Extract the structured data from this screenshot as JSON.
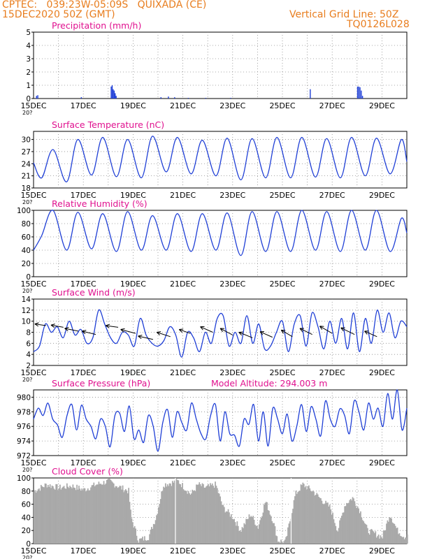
{
  "header": {
    "line1": "CPTEC:   039:23W-05:09S   QUIXADA (CE)",
    "line2": "15DEC2020 50Z (GMT)",
    "grid_note": "Vertical Grid Line: 50Z",
    "code": "TQ0126L028"
  },
  "colors": {
    "header": "#e87d1e",
    "title": "#e0118f",
    "line": "#1f3fd6",
    "cloud": "#a9a9a9",
    "arrow": "#000000"
  },
  "x_axis": {
    "labels": [
      "15DEC",
      "17DEC",
      "19DEC",
      "21DEC",
      "23DEC",
      "25DEC",
      "27DEC",
      "29DEC"
    ],
    "label_days": [
      0,
      2,
      4,
      6,
      8,
      10,
      12,
      14
    ],
    "day_range": [
      0,
      15
    ],
    "stub": "20?"
  },
  "chart_data": [
    {
      "id": "precip",
      "type": "bar",
      "title": "Precipitation (mm/h)",
      "ylim": [
        0,
        5
      ],
      "yticks": [
        0,
        1,
        2,
        3,
        4,
        5
      ],
      "grid": true,
      "points": [
        [
          0.1,
          0.2
        ],
        [
          0.15,
          0.25
        ],
        [
          1.9,
          0.1
        ],
        [
          3.1,
          0.9
        ],
        [
          3.14,
          1.0
        ],
        [
          3.18,
          0.7
        ],
        [
          3.22,
          0.6
        ],
        [
          3.26,
          0.4
        ],
        [
          3.3,
          0.2
        ],
        [
          5.1,
          0.1
        ],
        [
          5.4,
          0.15
        ],
        [
          5.65,
          0.1
        ],
        [
          6.2,
          0.05
        ],
        [
          6.9,
          0.05
        ],
        [
          7.9,
          0.05
        ],
        [
          11.1,
          0.7
        ],
        [
          13.0,
          0.9
        ],
        [
          13.05,
          0.9
        ],
        [
          13.1,
          0.85
        ],
        [
          13.15,
          0.6
        ],
        [
          13.2,
          0.2
        ]
      ]
    },
    {
      "id": "temp",
      "type": "line",
      "title": "Surface Temperature (nC)",
      "ylim": [
        18,
        32
      ],
      "yticks": [
        18,
        21,
        24,
        27,
        30
      ],
      "grid": true,
      "cycle": {
        "min": [
          20.5,
          19.5,
          21.2,
          20.8,
          20.5,
          22,
          21.5,
          21,
          20,
          20.5,
          20.5,
          20.7,
          20.5,
          21,
          21.5,
          21.5
        ],
        "max": [
          27.5,
          30,
          30.5,
          30,
          30.8,
          30.5,
          29.8,
          30.3,
          30.2,
          30.5,
          30.5,
          30.2,
          30.5,
          30.3,
          30,
          29.5
        ]
      }
    },
    {
      "id": "rh",
      "type": "line",
      "title": "Relative Humidity (%)",
      "ylim": [
        0,
        100
      ],
      "yticks": [
        0,
        20,
        40,
        60,
        80,
        100
      ],
      "grid": true,
      "cycle": {
        "min": [
          62,
          40,
          42,
          38,
          40,
          40,
          38,
          40,
          32,
          38,
          38,
          40,
          38,
          40,
          38,
          42
        ],
        "max": [
          100,
          97,
          95,
          98,
          92,
          95,
          95,
          96,
          98,
          98,
          100,
          98,
          100,
          100,
          88,
          90
        ]
      }
    },
    {
      "id": "wind",
      "type": "line",
      "title": "Surface Wind (m/s)",
      "ylim": [
        2,
        14
      ],
      "yticks": [
        2,
        4,
        6,
        8,
        10,
        12,
        14
      ],
      "grid": true,
      "values": [
        4.5,
        5.5,
        9.5,
        8,
        9,
        7,
        10,
        7.5,
        8.5,
        6,
        7,
        12,
        9.5,
        7,
        6,
        8,
        7.5,
        5.5,
        10.5,
        7.5,
        6,
        5.5,
        6.5,
        9,
        7.5,
        3.5,
        8,
        7,
        4.5,
        8,
        6,
        10.5,
        11,
        5.5,
        8,
        6,
        11,
        6,
        9.5,
        5,
        5.5,
        8,
        10,
        4.5,
        9.5,
        11,
        5.5,
        11.5,
        9,
        5,
        10,
        6,
        10.5,
        5,
        11.5,
        4.5,
        10.5,
        6,
        12,
        8,
        11.5,
        7,
        10,
        9
      ],
      "arrows": [
        [
          0.5,
          9.2,
          -0.45,
          0.3
        ],
        [
          1.2,
          8.9,
          -0.5,
          0.4
        ],
        [
          1.8,
          8.2,
          -0.55,
          0.5
        ],
        [
          2.5,
          7.6,
          -0.55,
          0.6
        ],
        [
          3.4,
          8.9,
          -0.5,
          0.3
        ],
        [
          4.1,
          7.8,
          -0.6,
          0.7
        ],
        [
          4.8,
          6.7,
          -0.6,
          0.6
        ],
        [
          5.5,
          7.2,
          -0.55,
          0.8
        ],
        [
          6.3,
          7.8,
          -0.45,
          0.7
        ],
        [
          7.2,
          8.0,
          -0.5,
          1.0
        ],
        [
          8.0,
          7.5,
          -0.5,
          1.2
        ],
        [
          8.8,
          7.0,
          -0.55,
          1.0
        ],
        [
          9.6,
          7.1,
          -0.5,
          1.0
        ],
        [
          10.4,
          7.2,
          -0.45,
          1.2
        ],
        [
          11.2,
          7.6,
          -0.5,
          1.1
        ],
        [
          12.0,
          7.8,
          -0.5,
          1.3
        ],
        [
          12.9,
          7.6,
          -0.55,
          1.2
        ],
        [
          13.8,
          7.2,
          -0.5,
          1.0
        ]
      ]
    },
    {
      "id": "press",
      "type": "line",
      "title": "Surface Pressure (hPa)",
      "note": "Model Altitude: 294.003 m",
      "ylim": [
        972,
        981
      ],
      "yticks": [
        972,
        974,
        976,
        978,
        980
      ],
      "grid": true,
      "values": [
        977,
        978.5,
        977.5,
        979.2,
        977,
        976.2,
        974.5,
        977.5,
        979,
        975.5,
        978.9,
        977,
        976,
        974.3,
        977,
        976,
        973.2,
        977.5,
        977.8,
        975.3,
        978.8,
        974.3,
        975.5,
        973.8,
        977.5,
        976,
        972.6,
        976.5,
        978.3,
        974.5,
        978,
        976.5,
        975.5,
        979.2,
        977,
        975,
        974.3,
        977.5,
        979,
        974,
        978,
        975,
        974.8,
        973.3,
        977,
        976.3,
        979,
        974,
        978,
        973.3,
        978.5,
        977,
        975,
        977.7,
        974,
        976,
        979,
        975.3,
        978.7,
        977,
        974.7,
        979.5,
        977,
        976,
        978.4,
        977.5,
        975,
        979.5,
        978,
        975.5,
        979.2,
        977,
        978.5,
        976,
        980.5,
        977,
        981,
        975.5,
        978.5
      ]
    },
    {
      "id": "cloud",
      "type": "bar",
      "title": "Cloud Cover (%)",
      "ylim": [
        0,
        100
      ],
      "yticks": [
        0,
        20,
        40,
        60,
        80,
        100
      ],
      "grid": true,
      "keys": [
        [
          0,
          80
        ],
        [
          0.5,
          90
        ],
        [
          1,
          85
        ],
        [
          1.5,
          88
        ],
        [
          2,
          82
        ],
        [
          2.5,
          90
        ],
        [
          3,
          95
        ],
        [
          3.5,
          85
        ],
        [
          3.8,
          80
        ],
        [
          3.9,
          40
        ],
        [
          4.2,
          5
        ],
        [
          4.6,
          10
        ],
        [
          4.9,
          40
        ],
        [
          5.2,
          90
        ],
        [
          5.8,
          95
        ],
        [
          6.3,
          75
        ],
        [
          6.6,
          90
        ],
        [
          6.9,
          85
        ],
        [
          7.3,
          90
        ],
        [
          7.6,
          55
        ],
        [
          8,
          40
        ],
        [
          8.3,
          20
        ],
        [
          8.7,
          45
        ],
        [
          9,
          25
        ],
        [
          9.3,
          65
        ],
        [
          9.6,
          35
        ],
        [
          9.8,
          5
        ],
        [
          10.1,
          2
        ],
        [
          10.5,
          75
        ],
        [
          10.8,
          90
        ],
        [
          11.2,
          80
        ],
        [
          11.6,
          65
        ],
        [
          11.9,
          55
        ],
        [
          12.2,
          20
        ],
        [
          12.5,
          60
        ],
        [
          12.8,
          70
        ],
        [
          13.1,
          50
        ],
        [
          13.4,
          20
        ],
        [
          13.7,
          15
        ],
        [
          14,
          10
        ],
        [
          14.3,
          45
        ],
        [
          14.6,
          20
        ],
        [
          14.9,
          10
        ],
        [
          15,
          15
        ]
      ]
    }
  ]
}
